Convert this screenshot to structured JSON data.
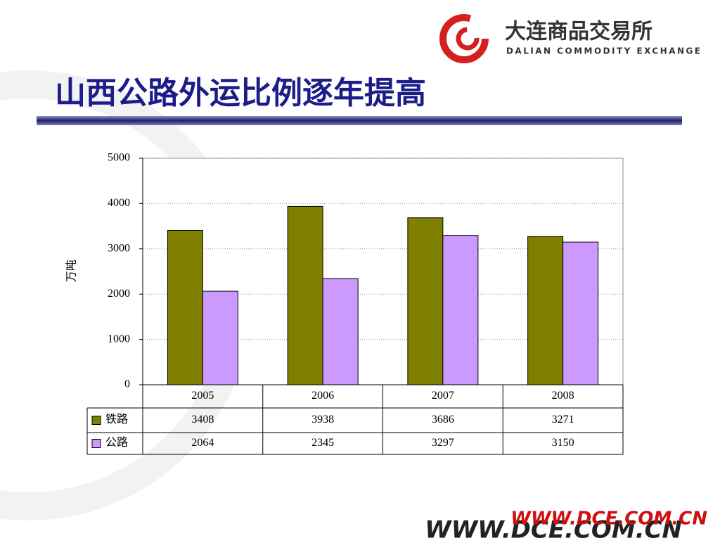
{
  "slide": {
    "title": "山西公路外运比例逐年提高",
    "logo_cn": "大连商品交易所",
    "logo_en": "DALIAN COMMODITY EXCHANGE",
    "url": "WWW.DCE.COM.CN"
  },
  "chart_data": {
    "type": "bar",
    "y_label": "万吨",
    "categories": [
      "2005",
      "2006",
      "2007",
      "2008"
    ],
    "series": [
      {
        "name": "铁路",
        "color": "#808000",
        "values": [
          3408,
          3938,
          3686,
          3271
        ]
      },
      {
        "name": "公路",
        "color": "#cc99ff",
        "values": [
          2064,
          2345,
          3297,
          3150
        ]
      }
    ],
    "ylim": [
      0,
      5000
    ],
    "yticks": [
      0,
      1000,
      2000,
      3000,
      4000,
      5000
    ],
    "grid": true,
    "legend": "table"
  }
}
